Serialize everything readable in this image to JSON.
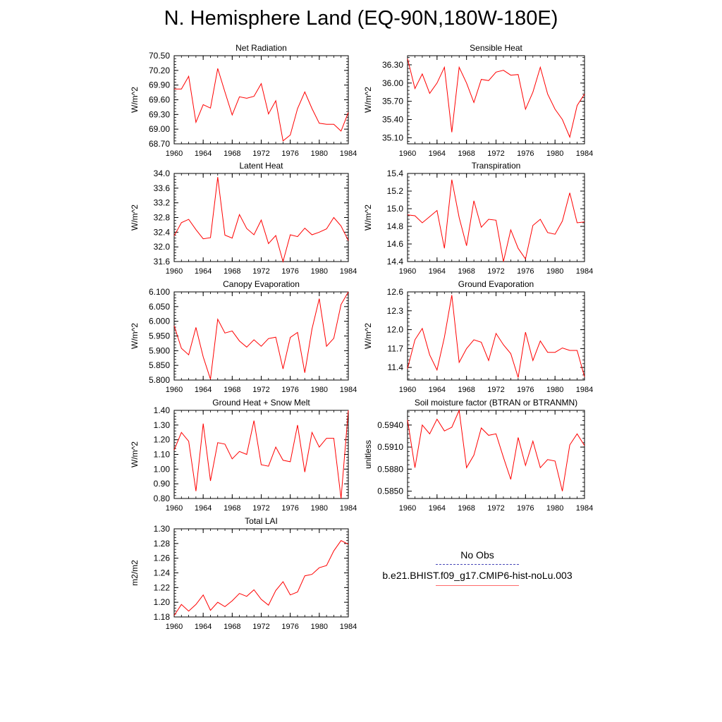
{
  "title": "N. Hemisphere Land (EQ-90N,180W-180E)",
  "legend": {
    "obs_label": "No Obs",
    "case_label": "b.e21.BHIST.f09_g17.CMIP6-hist-noLu.003",
    "obs_color": "#4848b8",
    "case_color": "#ff6a6a"
  },
  "chart_data": [
    {
      "type": "line",
      "title": "Net Radiation",
      "ylabel": "W/m^2",
      "xlim": [
        1960,
        1984
      ],
      "ylim": [
        68.7,
        70.5
      ],
      "xticks": [
        "1960",
        "1964",
        "1968",
        "1972",
        "1976",
        "1980",
        "1984"
      ],
      "yticks": [
        "68.70",
        "69.00",
        "69.30",
        "69.60",
        "69.90",
        "70.20",
        "70.50"
      ],
      "color": "#ff0000",
      "x": [
        1960,
        1961,
        1962,
        1963,
        1964,
        1965,
        1966,
        1967,
        1968,
        1969,
        1970,
        1971,
        1972,
        1973,
        1974,
        1975,
        1976,
        1977,
        1978,
        1979,
        1980,
        1981,
        1982,
        1983,
        1984
      ],
      "y": [
        69.82,
        69.82,
        70.08,
        69.14,
        69.5,
        69.43,
        70.24,
        69.76,
        69.29,
        69.66,
        69.63,
        69.67,
        69.93,
        69.31,
        69.58,
        68.76,
        68.88,
        69.42,
        69.76,
        69.42,
        69.12,
        69.1,
        69.1,
        68.96,
        69.34
      ]
    },
    {
      "type": "line",
      "title": "Sensible Heat",
      "ylabel": "W/m^2",
      "xlim": [
        1960,
        1984
      ],
      "ylim": [
        35.0,
        36.45
      ],
      "xticks": [
        "1960",
        "1964",
        "1968",
        "1972",
        "1976",
        "1980",
        "1984"
      ],
      "yticks": [
        "35.10",
        "35.40",
        "35.70",
        "36.00",
        "36.30"
      ],
      "color": "#ff0000",
      "x": [
        1960,
        1961,
        1962,
        1963,
        1964,
        1965,
        1966,
        1967,
        1968,
        1969,
        1970,
        1971,
        1972,
        1973,
        1974,
        1975,
        1976,
        1977,
        1978,
        1979,
        1980,
        1981,
        1982,
        1983,
        1984
      ],
      "y": [
        36.4,
        35.91,
        36.15,
        35.83,
        36.0,
        36.26,
        35.19,
        36.26,
        36.0,
        35.68,
        36.06,
        36.04,
        36.18,
        36.21,
        36.13,
        36.14,
        35.57,
        35.85,
        36.26,
        35.82,
        35.57,
        35.4,
        35.11,
        35.63,
        35.82
      ]
    },
    {
      "type": "line",
      "title": "Latent Heat",
      "ylabel": "W/m^2",
      "xlim": [
        1960,
        1984
      ],
      "ylim": [
        31.6,
        34.0
      ],
      "xticks": [
        "1960",
        "1964",
        "1968",
        "1972",
        "1976",
        "1980",
        "1984"
      ],
      "yticks": [
        "31.6",
        "32.0",
        "32.4",
        "32.8",
        "33.2",
        "33.6",
        "34.0"
      ],
      "color": "#ff0000",
      "x": [
        1960,
        1961,
        1962,
        1963,
        1964,
        1965,
        1966,
        1967,
        1968,
        1969,
        1970,
        1971,
        1972,
        1973,
        1974,
        1975,
        1976,
        1977,
        1978,
        1979,
        1980,
        1981,
        1982,
        1983,
        1984
      ],
      "y": [
        32.3,
        32.66,
        32.75,
        32.47,
        32.22,
        32.25,
        33.9,
        32.32,
        32.24,
        32.88,
        32.5,
        32.33,
        32.73,
        32.09,
        32.31,
        31.6,
        32.33,
        32.28,
        32.51,
        32.33,
        32.4,
        32.49,
        32.8,
        32.57,
        32.17
      ]
    },
    {
      "type": "line",
      "title": "Transpiration",
      "ylabel": "W/m^2",
      "xlim": [
        1960,
        1984
      ],
      "ylim": [
        14.4,
        15.4
      ],
      "xticks": [
        "1960",
        "1964",
        "1968",
        "1972",
        "1976",
        "1980",
        "1984"
      ],
      "yticks": [
        "14.4",
        "14.6",
        "14.8",
        "15.0",
        "15.2",
        "15.4"
      ],
      "color": "#ff0000",
      "x": [
        1960,
        1961,
        1962,
        1963,
        1964,
        1965,
        1966,
        1967,
        1968,
        1969,
        1970,
        1971,
        1972,
        1973,
        1974,
        1975,
        1976,
        1977,
        1978,
        1979,
        1980,
        1981,
        1982,
        1983,
        1984
      ],
      "y": [
        14.93,
        14.92,
        14.84,
        14.91,
        14.98,
        14.55,
        15.33,
        14.9,
        14.58,
        15.09,
        14.79,
        14.88,
        14.87,
        14.4,
        14.76,
        14.55,
        14.43,
        14.81,
        14.88,
        14.73,
        14.71,
        14.86,
        15.18,
        14.84,
        14.85
      ]
    },
    {
      "type": "line",
      "title": "Canopy Evaporation",
      "ylabel": "W/m^2",
      "xlim": [
        1960,
        1984
      ],
      "ylim": [
        5.8,
        6.1
      ],
      "xticks": [
        "1960",
        "1964",
        "1968",
        "1972",
        "1976",
        "1980",
        "1984"
      ],
      "yticks": [
        "5.800",
        "5.850",
        "5.900",
        "5.950",
        "6.000",
        "6.050",
        "6.100"
      ],
      "color": "#ff0000",
      "x": [
        1960,
        1961,
        1962,
        1963,
        1964,
        1965,
        1966,
        1967,
        1968,
        1969,
        1970,
        1971,
        1972,
        1973,
        1974,
        1975,
        1976,
        1977,
        1978,
        1979,
        1980,
        1981,
        1982,
        1983,
        1984
      ],
      "y": [
        5.985,
        5.908,
        5.886,
        5.979,
        5.879,
        5.803,
        6.007,
        5.96,
        5.967,
        5.933,
        5.912,
        5.937,
        5.915,
        5.941,
        5.946,
        5.838,
        5.945,
        5.962,
        5.825,
        5.974,
        6.077,
        5.915,
        5.942,
        6.057,
        6.1
      ]
    },
    {
      "type": "line",
      "title": "Ground Evaporation",
      "ylabel": "W/m^2",
      "xlim": [
        1960,
        1984
      ],
      "ylim": [
        11.2,
        12.6
      ],
      "xticks": [
        "1960",
        "1964",
        "1968",
        "1972",
        "1976",
        "1980",
        "1984"
      ],
      "yticks": [
        "11.4",
        "11.7",
        "12.0",
        "12.3",
        "12.6"
      ],
      "color": "#ff0000",
      "x": [
        1960,
        1961,
        1962,
        1963,
        1964,
        1965,
        1966,
        1967,
        1968,
        1969,
        1970,
        1971,
        1972,
        1973,
        1974,
        1975,
        1976,
        1977,
        1978,
        1979,
        1980,
        1981,
        1982,
        1983,
        1984
      ],
      "y": [
        11.38,
        11.84,
        12.02,
        11.6,
        11.36,
        11.88,
        12.55,
        11.48,
        11.7,
        11.84,
        11.8,
        11.51,
        11.94,
        11.76,
        11.62,
        11.24,
        11.96,
        11.51,
        11.82,
        11.64,
        11.64,
        11.71,
        11.67,
        11.67,
        11.25
      ]
    },
    {
      "type": "line",
      "title": "Ground Heat + Snow Melt",
      "ylabel": "W/m^2",
      "xlim": [
        1960,
        1984
      ],
      "ylim": [
        0.8,
        1.4
      ],
      "xticks": [
        "1960",
        "1964",
        "1968",
        "1972",
        "1976",
        "1980",
        "1984"
      ],
      "yticks": [
        "0.80",
        "0.90",
        "1.00",
        "1.10",
        "1.20",
        "1.30",
        "1.40"
      ],
      "color": "#ff0000",
      "x": [
        1960,
        1961,
        1962,
        1963,
        1964,
        1965,
        1966,
        1967,
        1968,
        1969,
        1970,
        1971,
        1972,
        1973,
        1974,
        1975,
        1976,
        1977,
        1978,
        1979,
        1980,
        1981,
        1982,
        1983,
        1984
      ],
      "y": [
        1.13,
        1.25,
        1.19,
        0.85,
        1.31,
        0.92,
        1.18,
        1.17,
        1.07,
        1.12,
        1.1,
        1.33,
        1.03,
        1.02,
        1.15,
        1.06,
        1.05,
        1.3,
        0.98,
        1.25,
        1.15,
        1.21,
        1.21,
        0.8,
        1.4
      ]
    },
    {
      "type": "line",
      "title": "Soil moisture factor (BTRAN or BTRANMN)",
      "ylabel": "unitless",
      "xlim": [
        1960,
        1984
      ],
      "ylim": [
        0.584,
        0.596
      ],
      "xticks": [
        "1960",
        "1964",
        "1968",
        "1972",
        "1976",
        "1980",
        "1984"
      ],
      "yticks": [
        "0.5850",
        "0.5880",
        "0.5910",
        "0.5940"
      ],
      "color": "#ff0000",
      "x": [
        1960,
        1961,
        1962,
        1963,
        1964,
        1965,
        1966,
        1967,
        1968,
        1969,
        1970,
        1971,
        1972,
        1973,
        1974,
        1975,
        1976,
        1977,
        1978,
        1979,
        1980,
        1981,
        1982,
        1983,
        1984
      ],
      "y": [
        0.5947,
        0.5882,
        0.594,
        0.5928,
        0.5948,
        0.5932,
        0.5937,
        0.596,
        0.5882,
        0.5899,
        0.5936,
        0.5926,
        0.5928,
        0.5896,
        0.5866,
        0.5923,
        0.5885,
        0.5918,
        0.5882,
        0.5893,
        0.5891,
        0.585,
        0.5913,
        0.5928,
        0.5912
      ]
    },
    {
      "type": "line",
      "title": "Total LAI",
      "ylabel": "m2/m2",
      "xlim": [
        1960,
        1984
      ],
      "ylim": [
        1.18,
        1.3
      ],
      "xticks": [
        "1960",
        "1964",
        "1968",
        "1972",
        "1976",
        "1980",
        "1984"
      ],
      "yticks": [
        "1.18",
        "1.20",
        "1.22",
        "1.24",
        "1.26",
        "1.28",
        "1.30"
      ],
      "color": "#ff0000",
      "x": [
        1960,
        1961,
        1962,
        1963,
        1964,
        1965,
        1966,
        1967,
        1968,
        1969,
        1970,
        1971,
        1972,
        1973,
        1974,
        1975,
        1976,
        1977,
        1978,
        1979,
        1980,
        1981,
        1982,
        1983,
        1984
      ],
      "y": [
        1.182,
        1.197,
        1.188,
        1.197,
        1.21,
        1.189,
        1.2,
        1.194,
        1.202,
        1.212,
        1.208,
        1.217,
        1.204,
        1.196,
        1.216,
        1.228,
        1.21,
        1.214,
        1.236,
        1.238,
        1.247,
        1.25,
        1.27,
        1.284,
        1.279
      ]
    }
  ]
}
